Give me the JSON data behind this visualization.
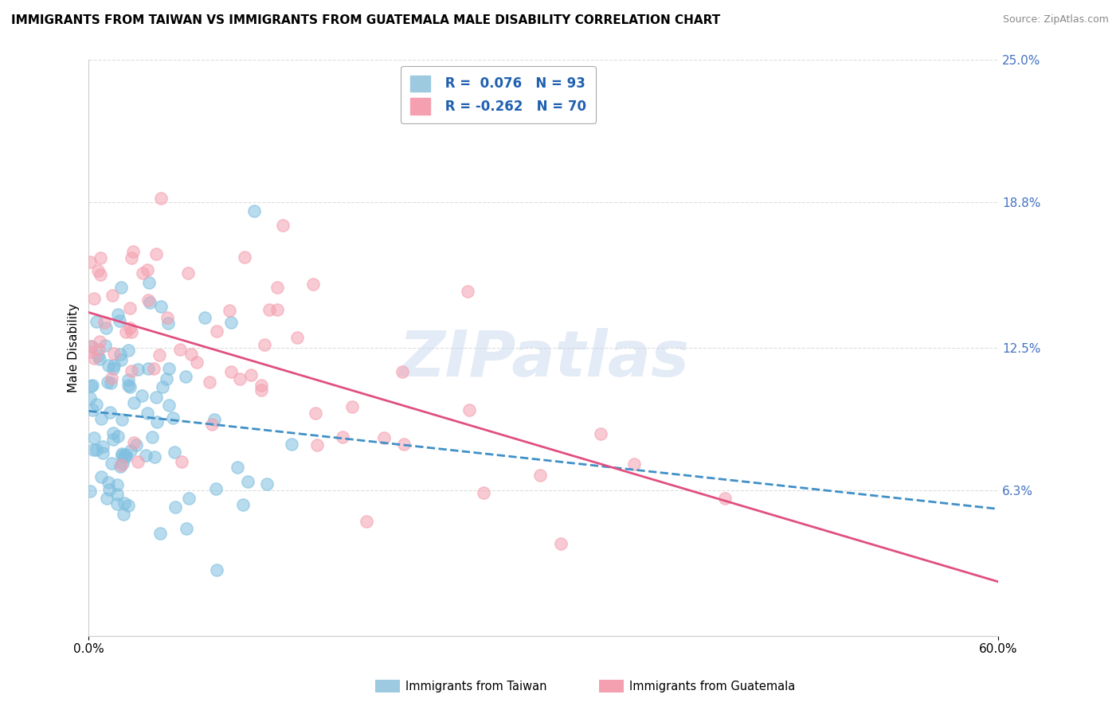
{
  "title": "IMMIGRANTS FROM TAIWAN VS IMMIGRANTS FROM GUATEMALA MALE DISABILITY CORRELATION CHART",
  "source": "Source: ZipAtlas.com",
  "ylabel": "Male Disability",
  "xlim": [
    0.0,
    0.6
  ],
  "ylim": [
    0.0,
    0.25
  ],
  "ytick_labels": [
    "6.3%",
    "12.5%",
    "18.8%",
    "25.0%"
  ],
  "ytick_values": [
    0.063,
    0.125,
    0.188,
    0.25
  ],
  "taiwan_R": 0.076,
  "taiwan_N": 93,
  "guatemala_R": -0.262,
  "guatemala_N": 70,
  "taiwan_color": "#7fbfdf",
  "guatemala_color": "#f4a0b0",
  "watermark": "ZIPatlas",
  "watermark_color": "#c8d8ee",
  "background_color": "#ffffff",
  "grid_color": "#dddddd"
}
